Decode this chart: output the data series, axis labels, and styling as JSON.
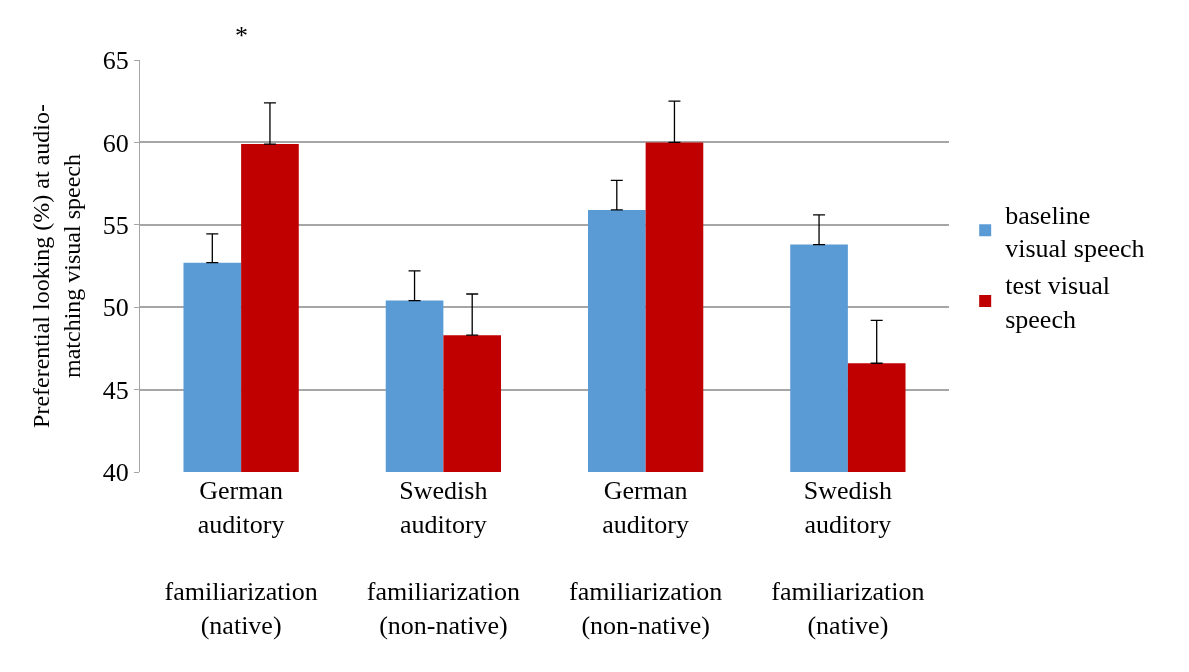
{
  "chart_data": {
    "type": "bar",
    "ylabel": "Preferential looking (%) at audio-\nmatching visual speech",
    "categories": [
      "German\nauditory\n\nfamiliarization\n(native)",
      "Swedish\nauditory\n\nfamiliarization\n(non-native)",
      "German\nauditory\n\nfamiliarization\n(non-native)",
      "Swedish\nauditory\n\nfamiliarization\n(native)"
    ],
    "series": [
      {
        "name": "baseline\nvisual speech",
        "color": "#5b9bd5",
        "values": [
          52.7,
          50.4,
          55.9,
          53.8
        ],
        "errors": [
          [
            52.7,
            54.45
          ],
          [
            50.4,
            52.2
          ],
          [
            55.9,
            57.7
          ],
          [
            53.8,
            55.6
          ]
        ]
      },
      {
        "name": "test visual\nspeech",
        "color": "#c00000",
        "values": [
          59.9,
          48.3,
          60.0,
          46.6
        ],
        "errors": [
          [
            59.9,
            62.4
          ],
          [
            48.3,
            50.8
          ],
          [
            60.0,
            62.5
          ],
          [
            46.6,
            49.2
          ]
        ]
      }
    ],
    "ylim": [
      40,
      65
    ],
    "yticks": [
      40,
      45,
      50,
      55,
      60,
      65
    ],
    "grid": "y",
    "legend": "right",
    "annotations": [
      "*"
    ]
  }
}
